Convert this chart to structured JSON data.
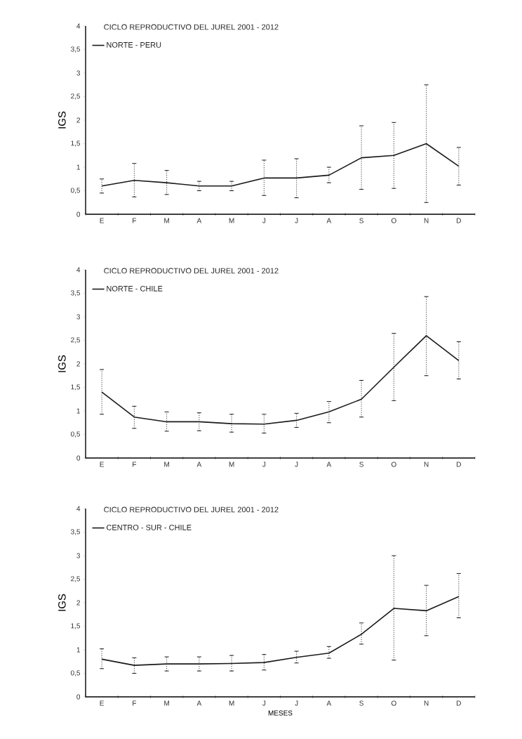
{
  "chart_data": [
    {
      "type": "line",
      "title": "CICLO REPRODUCTIVO DEL  JUREL  2001 - 2012",
      "ylabel": "IGS",
      "categories": [
        "E",
        "F",
        "M",
        "A",
        "M",
        "J",
        "J",
        "A",
        "S",
        "O",
        "N",
        "D"
      ],
      "series": [
        {
          "name": "NORTE - PERU",
          "color": "#1a1a1a",
          "values": [
            0.6,
            0.72,
            0.67,
            0.6,
            0.6,
            0.77,
            0.77,
            0.83,
            1.2,
            1.25,
            1.5,
            1.02
          ],
          "errors": [
            [
              0.45,
              0.75
            ],
            [
              0.37,
              1.08
            ],
            [
              0.42,
              0.93
            ],
            [
              0.5,
              0.7
            ],
            [
              0.5,
              0.7
            ],
            [
              0.4,
              1.15
            ],
            [
              0.35,
              1.18
            ],
            [
              0.67,
              1.0
            ],
            [
              0.53,
              1.88
            ],
            [
              0.55,
              1.95
            ],
            [
              0.25,
              2.75
            ],
            [
              0.62,
              1.42
            ]
          ]
        }
      ],
      "ylim": [
        0,
        4
      ],
      "yticks": [
        0,
        {
          "value": 0.5,
          "label": "0,5"
        },
        1,
        {
          "value": 1.5,
          "label": "1,5"
        },
        2,
        {
          "value": 2.5,
          "label": "2,5"
        },
        3,
        {
          "value": 3.5,
          "label": "3,5"
        },
        4
      ],
      "legend": "top left",
      "grid": false
    },
    {
      "type": "line",
      "title": "CICLO REPRODUCTIVO DEL  JUREL  2001 - 2012",
      "ylabel": "IGS",
      "categories": [
        "E",
        "F",
        "M",
        "A",
        "M",
        "J",
        "J",
        "A",
        "S",
        "O",
        "N",
        "D"
      ],
      "series": [
        {
          "name": "NORTE - CHILE",
          "color": "#1a1a1a",
          "values": [
            1.4,
            0.87,
            0.77,
            0.77,
            0.73,
            0.72,
            0.8,
            0.98,
            1.25,
            1.93,
            2.6,
            2.07
          ],
          "errors": [
            [
              0.93,
              1.88
            ],
            [
              0.63,
              1.1
            ],
            [
              0.57,
              0.98
            ],
            [
              0.58,
              0.96
            ],
            [
              0.55,
              0.93
            ],
            [
              0.53,
              0.93
            ],
            [
              0.65,
              0.95
            ],
            [
              0.75,
              1.2
            ],
            [
              0.87,
              1.65
            ],
            [
              1.22,
              2.65
            ],
            [
              1.75,
              3.43
            ],
            [
              1.68,
              2.47
            ]
          ]
        }
      ],
      "ylim": [
        0,
        4
      ],
      "yticks": [
        0,
        {
          "value": 0.5,
          "label": "0,5"
        },
        1,
        {
          "value": 1.5,
          "label": "1,5"
        },
        2,
        {
          "value": 2.5,
          "label": "2,5"
        },
        3,
        {
          "value": 3.5,
          "label": "3,5"
        },
        4
      ],
      "legend": "top left",
      "grid": false
    },
    {
      "type": "line",
      "title": "CICLO REPRODUCTIVO DEL  JUREL  2001 - 2012",
      "xlabel": "MESES",
      "ylabel": "IGS",
      "categories": [
        "E",
        "F",
        "M",
        "A",
        "M",
        "J",
        "J",
        "A",
        "S",
        "O",
        "N",
        "D"
      ],
      "series": [
        {
          "name": "CENTRO - SUR - CHILE",
          "color": "#1a1a1a",
          "values": [
            0.8,
            0.67,
            0.7,
            0.7,
            0.71,
            0.73,
            0.84,
            0.93,
            1.33,
            1.88,
            1.83,
            2.13
          ],
          "errors": [
            [
              0.6,
              1.02
            ],
            [
              0.5,
              0.83
            ],
            [
              0.55,
              0.85
            ],
            [
              0.55,
              0.85
            ],
            [
              0.55,
              0.88
            ],
            [
              0.57,
              0.9
            ],
            [
              0.72,
              0.97
            ],
            [
              0.82,
              1.07
            ],
            [
              1.12,
              1.57
            ],
            [
              0.78,
              3.0
            ],
            [
              1.3,
              2.37
            ],
            [
              1.68,
              2.62
            ]
          ]
        }
      ],
      "ylim": [
        0,
        4
      ],
      "yticks": [
        0,
        {
          "value": 0.5,
          "label": "0,5"
        },
        1,
        {
          "value": 1.5,
          "label": "1,5"
        },
        2,
        {
          "value": 2.5,
          "label": "2,5"
        },
        3,
        {
          "value": 3.5,
          "label": "3,5"
        },
        4
      ],
      "legend": "top left",
      "grid": false
    }
  ]
}
